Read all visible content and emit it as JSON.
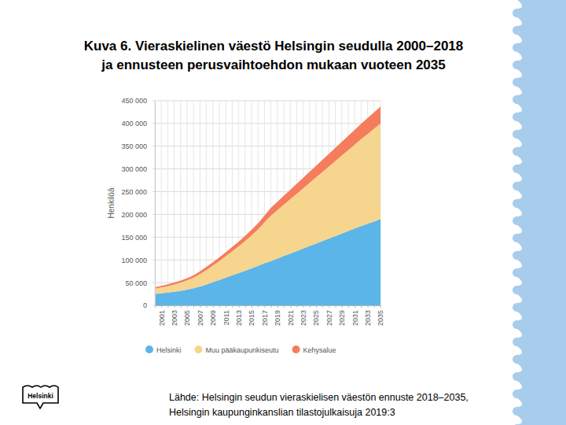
{
  "chart_data": {
    "type": "area",
    "title": [
      "Kuva 6. Vieraskielinen väestö Helsingin seudulla 2000–2018",
      "ja ennusteen perusvaihtoehdon mukaan vuoteen 2035"
    ],
    "y_label": "Henkilöä",
    "categories": [
      null,
      "2001",
      null,
      "2003",
      null,
      "2005",
      null,
      "2007",
      null,
      "2009",
      null,
      "2011",
      null,
      "2013",
      null,
      "2015",
      null,
      "2017",
      null,
      "2019",
      null,
      "2021",
      null,
      "2023",
      null,
      "2025",
      null,
      "2027",
      null,
      "2029",
      null,
      "2031",
      null,
      "2033",
      null,
      "2035"
    ],
    "series": [
      {
        "name": "Helsinki",
        "color": "#5bb5e8",
        "values": [
          25000,
          26500,
          28000,
          30000,
          32000,
          34500,
          37500,
          41500,
          46000,
          51000,
          56000,
          61000,
          66000,
          71000,
          76000,
          81500,
          87000,
          92500,
          97500,
          103000,
          108500,
          114000,
          119500,
          125000,
          130500,
          136000,
          141500,
          147000,
          152500,
          158000,
          163500,
          169000,
          174500,
          179500,
          184500,
          190000
        ]
      },
      {
        "name": "Muu pääkaupunkiseutu",
        "color": "#f6d58e",
        "values": [
          12000,
          13000,
          14500,
          16000,
          18000,
          20500,
          23500,
          27500,
          32000,
          36500,
          41500,
          47000,
          53000,
          59000,
          65500,
          72500,
          80000,
          90000,
          100000,
          106500,
          113000,
          119500,
          126000,
          132500,
          139000,
          145500,
          152000,
          158500,
          165000,
          171500,
          178000,
          184500,
          191000,
          197500,
          204000,
          210000
        ]
      },
      {
        "name": "Kehysalue",
        "color": "#f57c5c",
        "values": [
          3000,
          3300,
          3600,
          4000,
          4400,
          4900,
          5400,
          6000,
          6700,
          7400,
          8100,
          8800,
          9500,
          10300,
          11100,
          12000,
          13500,
          15000,
          17000,
          18200,
          19400,
          20600,
          21800,
          23000,
          24200,
          25400,
          26600,
          27800,
          29000,
          30200,
          31400,
          32600,
          33800,
          35000,
          36000,
          37000
        ]
      }
    ],
    "stacked": true,
    "grid": true,
    "legend": "bottom",
    "ylim": [
      0,
      450000
    ],
    "yticks": [
      {
        "value": 0,
        "label": "0"
      },
      {
        "value": 50000,
        "label": "50 000"
      },
      {
        "value": 100000,
        "label": "100 000"
      },
      {
        "value": 150000,
        "label": "150 000"
      },
      {
        "value": 200000,
        "label": "200 000"
      },
      {
        "value": 250000,
        "label": "250 000"
      },
      {
        "value": 300000,
        "label": "300 000"
      },
      {
        "value": 350000,
        "label": "350 000"
      },
      {
        "value": 400000,
        "label": "400 000"
      },
      {
        "value": 450000,
        "label": "450 000"
      }
    ]
  },
  "source": [
    "Lähde: Helsingin seudun vieraskielisen väestön ennuste 2018–2035,",
    "Helsingin kaupunginkanslian tilastojulkaisuja 2019:3"
  ],
  "logo": "Helsinki"
}
